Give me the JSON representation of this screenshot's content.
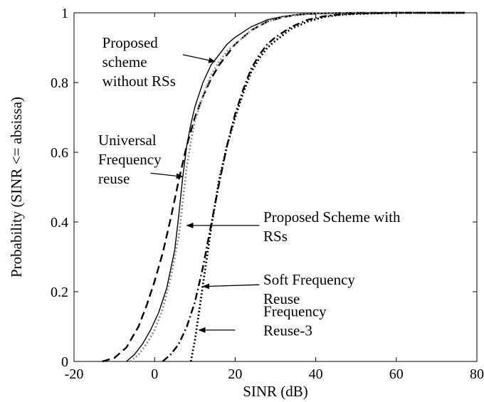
{
  "chart_data": {
    "type": "line",
    "xlabel": "SINR (dB)",
    "ylabel": "Probability (SINR <= absissa)",
    "xlim": [
      -20,
      80
    ],
    "ylim": [
      0,
      1
    ],
    "xticks": [
      -20,
      0,
      20,
      40,
      60,
      80
    ],
    "yticks": [
      0,
      0.2,
      0.4,
      0.6,
      0.8,
      1
    ],
    "xtick_labels": [
      "-20",
      "0",
      "20",
      "40",
      "60",
      "80"
    ],
    "ytick_labels": [
      "0",
      "0.2",
      "0.4",
      "0.6",
      "0.8",
      "1"
    ],
    "grid": false,
    "series": [
      {
        "name": "Universal Frequency reuse",
        "style": "dashed-long",
        "x": [
          -13,
          -10,
          -7,
          -4,
          -2,
          0,
          2,
          4,
          6,
          8,
          10,
          12,
          14,
          16,
          18,
          20,
          24,
          28,
          32,
          36,
          40,
          50,
          60,
          77
        ],
        "y": [
          0,
          0.01,
          0.04,
          0.1,
          0.16,
          0.23,
          0.31,
          0.41,
          0.52,
          0.62,
          0.7,
          0.76,
          0.81,
          0.85,
          0.88,
          0.91,
          0.95,
          0.975,
          0.988,
          0.995,
          0.998,
          1.0,
          1.0,
          1.0
        ]
      },
      {
        "name": "Proposed scheme without RSs",
        "style": "solid",
        "x": [
          -7,
          -5,
          -3,
          -1,
          1,
          3,
          5,
          6,
          7,
          8,
          9,
          10,
          12,
          14,
          16,
          18,
          20,
          24,
          28,
          32,
          36,
          40,
          50,
          60,
          77
        ],
        "y": [
          0,
          0.02,
          0.05,
          0.09,
          0.14,
          0.21,
          0.32,
          0.42,
          0.53,
          0.62,
          0.68,
          0.73,
          0.8,
          0.85,
          0.88,
          0.91,
          0.93,
          0.96,
          0.98,
          0.99,
          0.996,
          0.998,
          1.0,
          1.0,
          1.0
        ]
      },
      {
        "name": "Proposed Scheme with RSs",
        "style": "dotted-gray",
        "x": [
          -6,
          -4,
          -2,
          0,
          2,
          4,
          6,
          7,
          8,
          9,
          10,
          12,
          14,
          16,
          18,
          20,
          24,
          28,
          32,
          36,
          40,
          50,
          60,
          77
        ],
        "y": [
          0,
          0.02,
          0.05,
          0.09,
          0.15,
          0.24,
          0.36,
          0.46,
          0.56,
          0.63,
          0.69,
          0.76,
          0.82,
          0.86,
          0.89,
          0.91,
          0.95,
          0.975,
          0.988,
          0.995,
          0.998,
          1.0,
          1.0,
          1.0
        ]
      },
      {
        "name": "Soft Frequency Reuse",
        "style": "dash-dot",
        "x": [
          2,
          4,
          6,
          8,
          10,
          12,
          14,
          16,
          18,
          20,
          22,
          24,
          26,
          28,
          30,
          34,
          38,
          42,
          46,
          50,
          60,
          77
        ],
        "y": [
          0,
          0.02,
          0.05,
          0.1,
          0.17,
          0.27,
          0.39,
          0.51,
          0.62,
          0.71,
          0.78,
          0.84,
          0.88,
          0.91,
          0.93,
          0.96,
          0.98,
          0.99,
          0.995,
          0.998,
          1.0,
          1.0
        ]
      },
      {
        "name": "Frequency Reuse-3",
        "style": "dotted",
        "x": [
          9,
          10,
          11,
          12,
          13,
          14,
          15,
          16,
          18,
          20,
          22,
          24,
          26,
          28,
          30,
          34,
          38,
          42,
          46,
          50,
          60,
          77
        ],
        "y": [
          0,
          0.06,
          0.14,
          0.22,
          0.3,
          0.38,
          0.45,
          0.52,
          0.62,
          0.7,
          0.77,
          0.83,
          0.87,
          0.9,
          0.92,
          0.955,
          0.975,
          0.988,
          0.994,
          0.997,
          1.0,
          1.0
        ]
      }
    ],
    "annotations": [
      {
        "lines": [
          "Proposed",
          "scheme",
          "without RSs"
        ],
        "anchor": [
          -13,
          0.9
        ],
        "arrow_from": [
          7,
          0.88
        ],
        "arrow_to": [
          15,
          0.86
        ]
      },
      {
        "lines": [
          "Universal",
          "Frequency",
          "reuse"
        ],
        "anchor": [
          -14,
          0.62
        ],
        "arrow_from": [
          -1,
          0.54
        ],
        "arrow_to": [
          7,
          0.53
        ]
      },
      {
        "lines": [
          "Proposed Scheme with",
          "RSs"
        ],
        "anchor": [
          27,
          0.4
        ],
        "arrow_from": [
          26,
          0.39
        ],
        "arrow_to": [
          8,
          0.39
        ]
      },
      {
        "lines": [
          "Soft Frequency",
          "Reuse"
        ],
        "anchor": [
          27,
          0.22
        ],
        "arrow_from": [
          26,
          0.22
        ],
        "arrow_to": [
          12,
          0.215
        ]
      },
      {
        "lines": [
          "Frequency",
          "Reuse-3"
        ],
        "anchor": [
          27,
          0.13
        ],
        "arrow_from": [
          20,
          0.09
        ],
        "arrow_to": [
          11,
          0.09
        ]
      }
    ]
  }
}
